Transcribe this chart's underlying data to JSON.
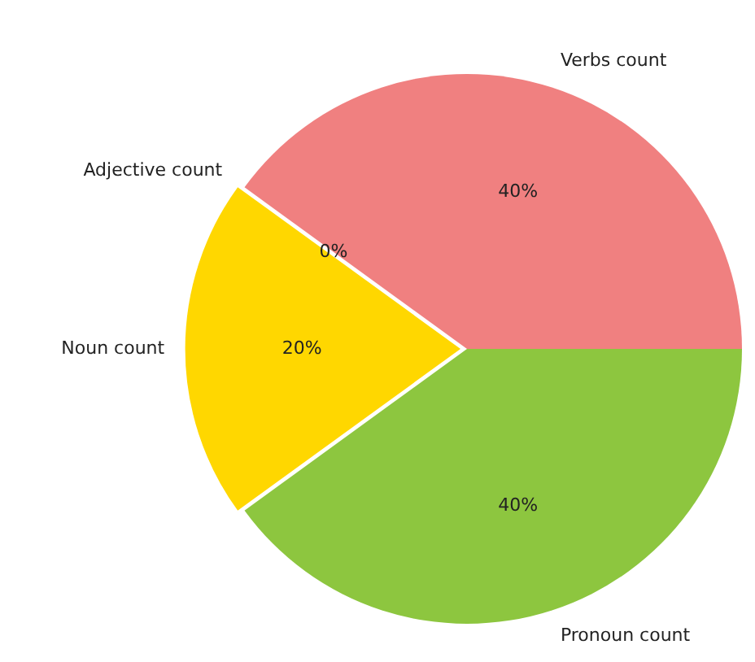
{
  "chart_data": {
    "type": "pie",
    "categories": [
      "Pronoun count",
      "Noun count",
      "Adjective count",
      "Verbs count"
    ],
    "values": [
      40,
      20,
      0,
      40
    ],
    "value_labels": [
      "40%",
      "20%",
      "0%",
      "40%"
    ],
    "colors": [
      "#8dc63f",
      "#ffd700",
      "#87cefa",
      "#f08080"
    ],
    "legend": false
  }
}
